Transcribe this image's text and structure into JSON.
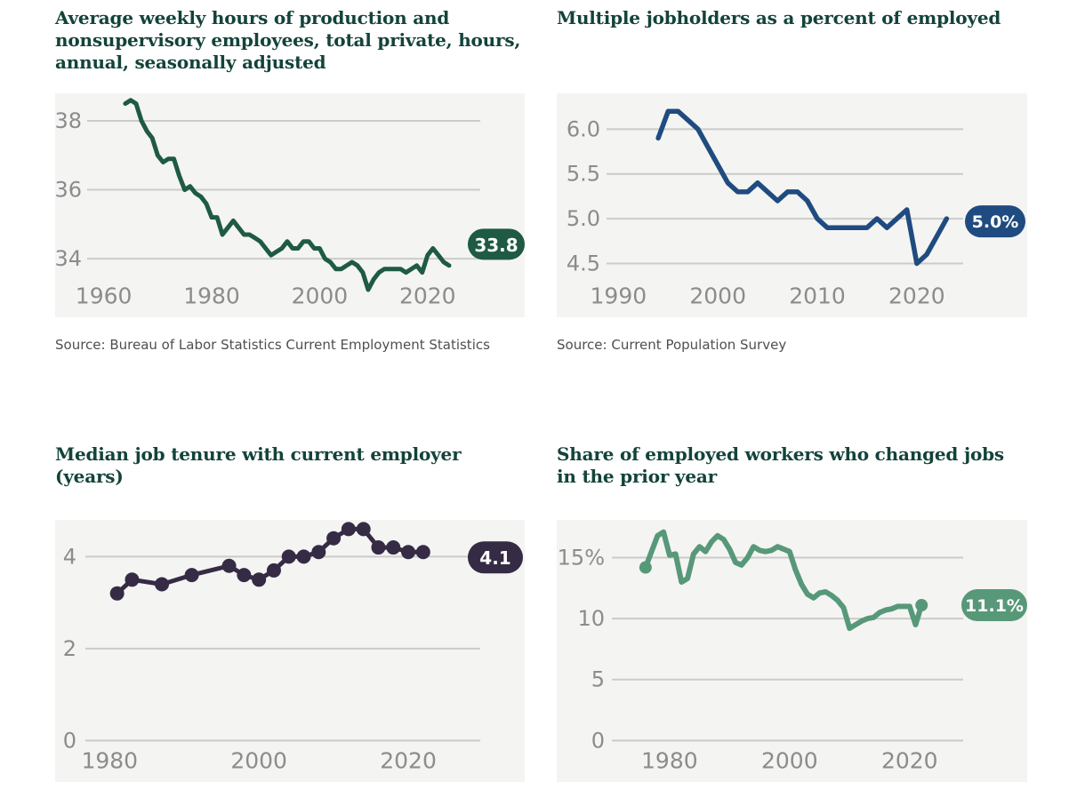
{
  "theme": {
    "page_bg": "#ffffff",
    "panel_bg": "#f4f4f2",
    "grid_color": "#cbcbcb",
    "tick_color": "#8c8c8c",
    "title_color": "#13433a",
    "source_color": "#4f4f4f",
    "badge_text_color": "#ffffff"
  },
  "chart_data": [
    {
      "id": "weekly-hours",
      "type": "line",
      "title": "Average weekly hours of production and nonsupervisory employees, total private, hours, annual, seasonally adjusted",
      "source": "Source: Bureau of Labor Statistics Current Employment Statistics",
      "line_color": "#1e5a44",
      "badge": {
        "label": "33.8",
        "value": 33.8
      },
      "markers": "none",
      "grid": true,
      "xticks": [
        1960,
        1980,
        2000,
        2020
      ],
      "yticks": {
        "values": [
          38,
          36,
          34
        ],
        "labels": [
          "38",
          "36",
          "34"
        ]
      },
      "xlim": [
        1951,
        2038
      ],
      "ylim": [
        32.3,
        38.8
      ],
      "x": [
        1964,
        1965,
        1966,
        1967,
        1968,
        1969,
        1970,
        1971,
        1972,
        1973,
        1974,
        1975,
        1976,
        1977,
        1978,
        1979,
        1980,
        1981,
        1982,
        1983,
        1984,
        1985,
        1986,
        1987,
        1988,
        1989,
        1990,
        1991,
        1992,
        1993,
        1994,
        1995,
        1996,
        1997,
        1998,
        1999,
        2000,
        2001,
        2002,
        2003,
        2004,
        2005,
        2006,
        2007,
        2008,
        2009,
        2010,
        2011,
        2012,
        2013,
        2014,
        2015,
        2016,
        2017,
        2018,
        2019,
        2020,
        2021,
        2022,
        2023,
        2024
      ],
      "values": [
        38.5,
        38.6,
        38.5,
        38.0,
        37.7,
        37.5,
        37.0,
        36.8,
        36.9,
        36.9,
        36.4,
        36.0,
        36.1,
        35.9,
        35.8,
        35.6,
        35.2,
        35.2,
        34.7,
        34.9,
        35.1,
        34.9,
        34.7,
        34.7,
        34.6,
        34.5,
        34.3,
        34.1,
        34.2,
        34.3,
        34.5,
        34.3,
        34.3,
        34.5,
        34.5,
        34.3,
        34.3,
        34.0,
        33.9,
        33.7,
        33.7,
        33.8,
        33.9,
        33.8,
        33.6,
        33.1,
        33.4,
        33.6,
        33.7,
        33.7,
        33.7,
        33.7,
        33.6,
        33.7,
        33.8,
        33.6,
        34.1,
        34.3,
        34.1,
        33.9,
        33.8
      ]
    },
    {
      "id": "multiple-jobholders",
      "type": "line",
      "title": "Multiple jobholders as a percent of employed",
      "source": "Source: Current Population Survey",
      "line_color": "#1f4b80",
      "badge": {
        "label": "5.0%",
        "value": 5.0
      },
      "markers": "none",
      "grid": true,
      "xticks": [
        1990,
        2000,
        2010,
        2020
      ],
      "yticks": {
        "values": [
          6.0,
          5.5,
          5.0,
          4.5
        ],
        "labels": [
          "6.0",
          "5.5",
          "5.0",
          "4.5"
        ]
      },
      "xlim": [
        1983.8,
        2031.1
      ],
      "ylim": [
        3.9,
        6.4
      ],
      "x": [
        1994,
        1995,
        1996,
        1997,
        1998,
        1999,
        2000,
        2001,
        2002,
        2003,
        2004,
        2005,
        2006,
        2007,
        2008,
        2009,
        2010,
        2011,
        2012,
        2013,
        2014,
        2015,
        2016,
        2017,
        2018,
        2019,
        2020,
        2021,
        2022,
        2023
      ],
      "values": [
        5.9,
        6.2,
        6.2,
        6.1,
        6.0,
        5.8,
        5.6,
        5.4,
        5.3,
        5.3,
        5.4,
        5.3,
        5.2,
        5.3,
        5.3,
        5.2,
        5.0,
        4.9,
        4.9,
        4.9,
        4.9,
        4.9,
        5.0,
        4.9,
        5.0,
        5.1,
        4.5,
        4.6,
        4.8,
        5.0
      ]
    },
    {
      "id": "median-tenure",
      "type": "line",
      "title": "Median job tenure with current employer (years)",
      "line_color": "#362b45",
      "badge": {
        "label": "4.1",
        "value": 4.1
      },
      "markers": "all",
      "grid": true,
      "xticks": [
        1980,
        2000,
        2020
      ],
      "yticks": {
        "values": [
          4,
          2,
          0
        ],
        "labels": [
          "4",
          "2",
          "0"
        ]
      },
      "xlim": [
        1972.7,
        2035.6
      ],
      "ylim": [
        -0.9,
        4.8
      ],
      "x": [
        1981,
        1983,
        1987,
        1991,
        1996,
        1998,
        2000,
        2002,
        2004,
        2006,
        2008,
        2010,
        2012,
        2014,
        2016,
        2018,
        2020,
        2022
      ],
      "values": [
        3.2,
        3.5,
        3.4,
        3.6,
        3.8,
        3.6,
        3.5,
        3.7,
        4.0,
        4.0,
        4.1,
        4.4,
        4.6,
        4.6,
        4.2,
        4.2,
        4.1,
        4.1
      ]
    },
    {
      "id": "job-changers",
      "type": "line",
      "title": "Share of employed workers who changed jobs in the prior year",
      "line_color": "#579878",
      "badge": {
        "label": "11.1%",
        "value": 11.1
      },
      "markers": "ends",
      "grid": true,
      "xticks": [
        1980,
        2000,
        2020
      ],
      "yticks": {
        "values": [
          15,
          10,
          5,
          0
        ],
        "labels": [
          "15%",
          "10",
          "5",
          "0"
        ]
      },
      "xlim": [
        1961.2,
        2039.6
      ],
      "ylim": [
        -3.4,
        18.1
      ],
      "x": [
        1976,
        1977,
        1978,
        1979,
        1980,
        1981,
        1982,
        1983,
        1984,
        1985,
        1986,
        1987,
        1988,
        1989,
        1990,
        1991,
        1992,
        1993,
        1994,
        1995,
        1996,
        1997,
        1998,
        1999,
        2000,
        2001,
        2002,
        2003,
        2004,
        2005,
        2006,
        2007,
        2008,
        2009,
        2010,
        2011,
        2012,
        2013,
        2014,
        2015,
        2016,
        2017,
        2018,
        2019,
        2020,
        2021,
        2022
      ],
      "values": [
        14.2,
        15.5,
        16.8,
        17.1,
        15.2,
        15.3,
        13.0,
        13.3,
        15.3,
        15.9,
        15.5,
        16.3,
        16.8,
        16.5,
        15.7,
        14.6,
        14.4,
        15.0,
        15.9,
        15.6,
        15.5,
        15.6,
        15.9,
        15.7,
        15.5,
        14.0,
        12.8,
        12.0,
        11.7,
        12.1,
        12.2,
        11.9,
        11.5,
        10.9,
        9.2,
        9.5,
        9.8,
        10.0,
        10.1,
        10.5,
        10.7,
        10.8,
        11.0,
        11.0,
        11.0,
        9.5,
        11.1
      ]
    }
  ]
}
